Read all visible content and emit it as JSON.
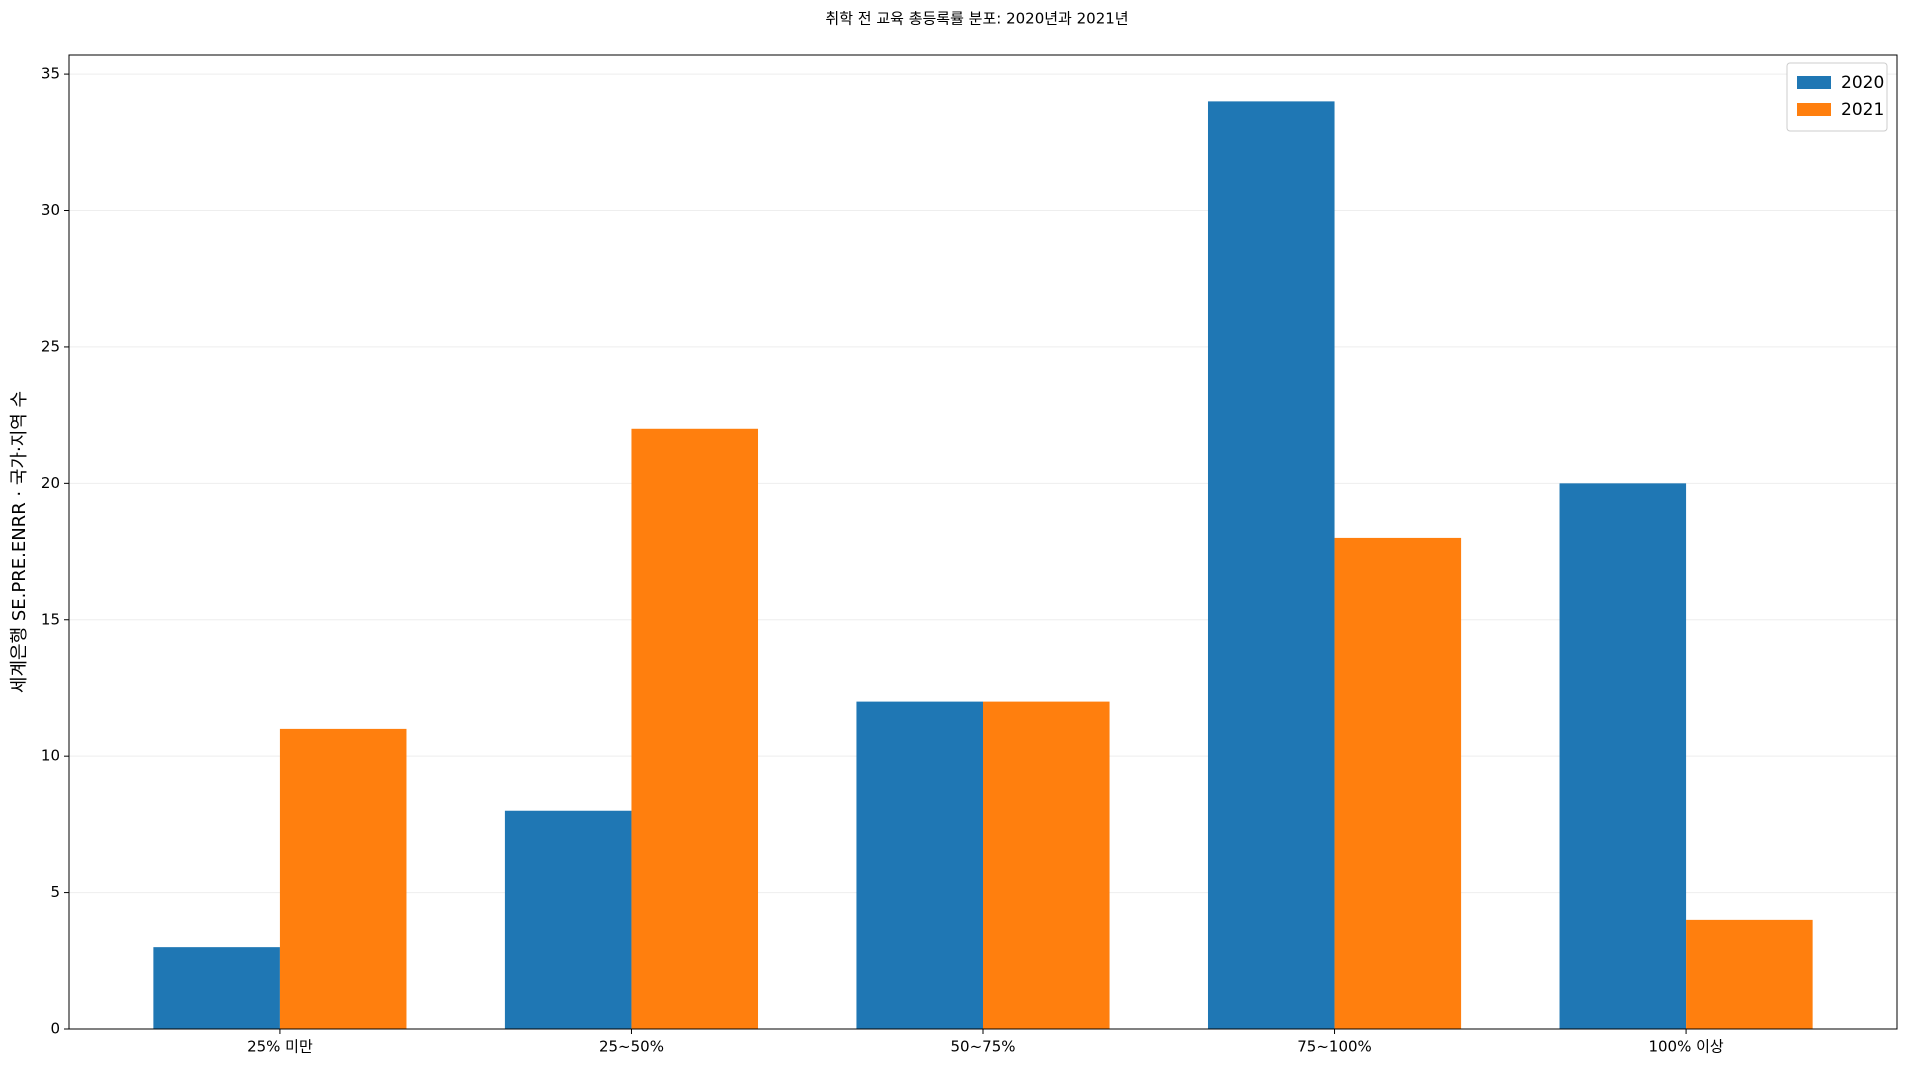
{
  "chart_data": {
    "type": "bar",
    "title": "취학 전 교육 총등록률 분포: 2020년과 2021년",
    "y_label": "세계은행 SE.PRE.ENRR · 국가·지역 수",
    "categories": [
      "25% 미만",
      "25~50%",
      "50~75%",
      "75~100%",
      "100% 이상"
    ],
    "series": [
      {
        "name": "2020",
        "color": "#1f77b4",
        "values": [
          3,
          8,
          12,
          34,
          20
        ]
      },
      {
        "name": "2021",
        "color": "#ff7f0e",
        "values": [
          11,
          22,
          12,
          18,
          4
        ]
      }
    ],
    "ylim": [
      0,
      35.7
    ],
    "yticks": [
      0,
      5,
      10,
      15,
      20,
      25,
      30,
      35
    ],
    "grid": true,
    "legend": "upper-right"
  }
}
